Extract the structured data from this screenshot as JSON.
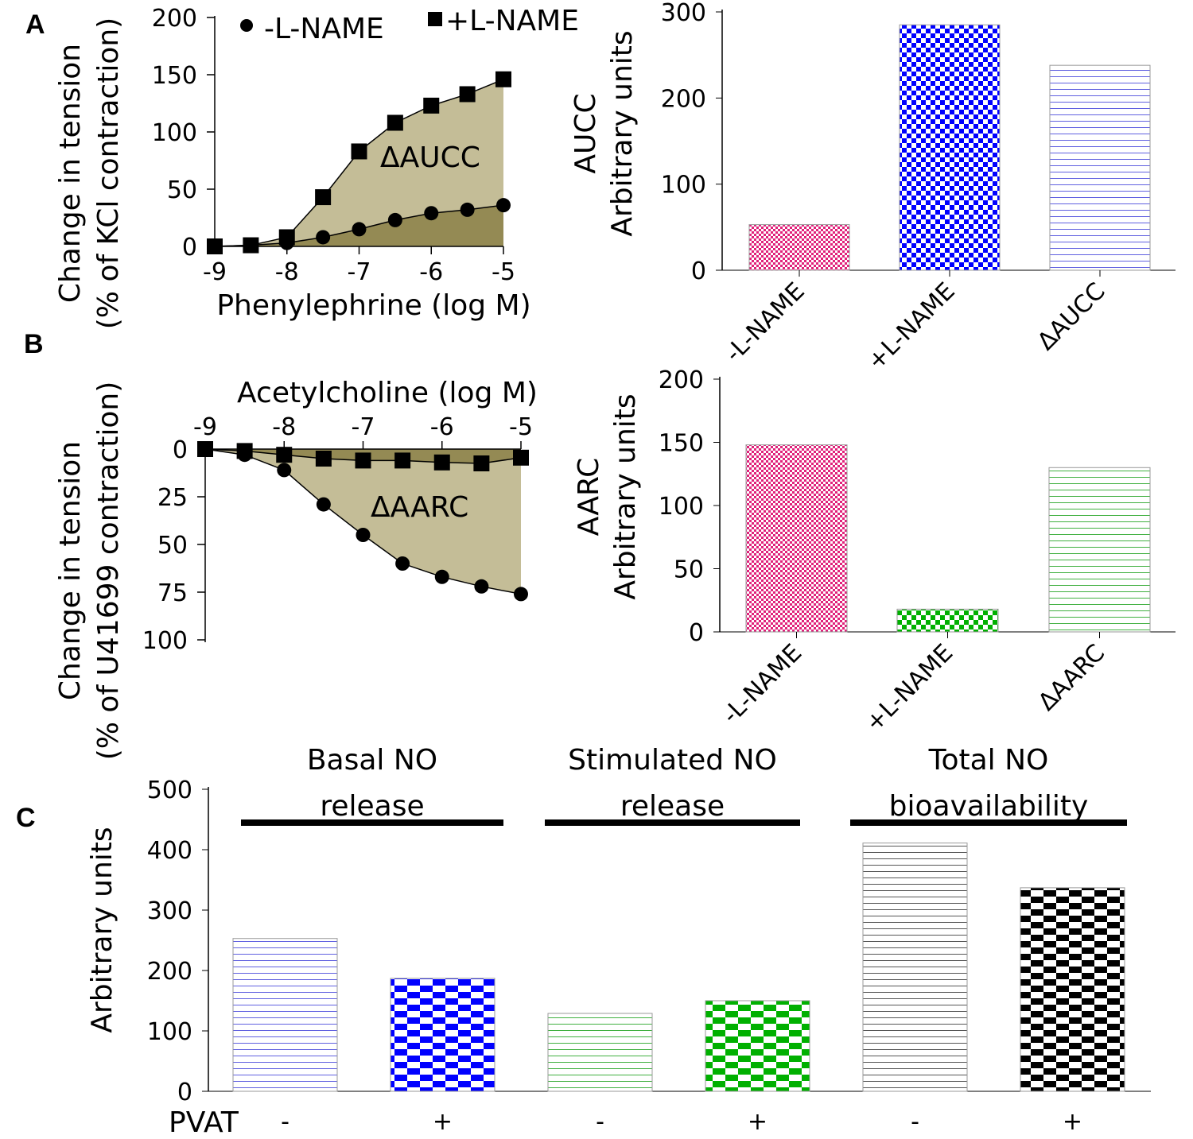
{
  "panel_labels": [
    "A",
    "B",
    "C"
  ],
  "chart_data": [
    {
      "id": "A_line",
      "type": "line",
      "xlabel": "Phenylephrine (log M)",
      "ylabel": [
        "Change in tension",
        "(% of KCl contraction)"
      ],
      "x": [
        -9,
        -8.5,
        -8,
        -7.5,
        -7,
        -6.5,
        -6,
        -5.5,
        -5
      ],
      "xticks": [
        "-9",
        "-8",
        "-7",
        "-6",
        "-5"
      ],
      "yticks": [
        "0",
        "50",
        "100",
        "150",
        "200"
      ],
      "xlim": [
        -9,
        -5
      ],
      "ylim": [
        0,
        200
      ],
      "series": [
        {
          "name": "-L-NAME",
          "marker": "circle",
          "values": [
            0,
            1,
            3,
            8,
            15,
            23,
            29,
            32,
            36
          ]
        },
        {
          "name": "+L-NAME",
          "marker": "square",
          "values": [
            0,
            1,
            8,
            43,
            83,
            108,
            123,
            133,
            146
          ]
        }
      ],
      "annotation": "ΔAUCC",
      "fill_colors": {
        "between": "#c4bd97",
        "under": "#948a54"
      },
      "legend": "top"
    },
    {
      "id": "A_bar",
      "type": "bar",
      "ylabel": [
        "AUCC",
        "Arbitrary units"
      ],
      "categories": [
        "-L-NAME",
        "+L-NAME",
        "ΔAUCC"
      ],
      "values": [
        53,
        285,
        238
      ],
      "yticks": [
        "0",
        "100",
        "200",
        "300"
      ],
      "ylim": [
        0,
        300
      ],
      "patterns": [
        "pink-checker",
        "blue-checker",
        "blue-lines"
      ]
    },
    {
      "id": "B_line",
      "type": "line",
      "xlabel": "Acetylcholine (log M)",
      "ylabel": [
        "Change in tension",
        "(% of U41699 contraction)"
      ],
      "x": [
        -9,
        -8.5,
        -8,
        -7.5,
        -7,
        -6.5,
        -6,
        -5.5,
        -5
      ],
      "xticks": [
        "-9",
        "-8",
        "-7",
        "-6",
        "-5"
      ],
      "yticks": [
        "0",
        "25",
        "50",
        "75",
        "100"
      ],
      "xlim": [
        -9,
        -5
      ],
      "ylim": [
        0,
        100
      ],
      "y_inverted": true,
      "series": [
        {
          "name": "-L-NAME",
          "marker": "circle",
          "values": [
            0,
            3,
            11,
            29,
            45,
            60,
            67,
            72,
            76
          ]
        },
        {
          "name": "+L-NAME",
          "marker": "square",
          "values": [
            0,
            1,
            3,
            5,
            6,
            6,
            7,
            7.5,
            4.5
          ]
        }
      ],
      "annotation": "ΔAARC",
      "fill_colors": {
        "between": "#c4bd97",
        "under": "#948a54"
      }
    },
    {
      "id": "B_bar",
      "type": "bar",
      "ylabel": [
        "AARC",
        "Arbitrary units"
      ],
      "categories": [
        "-L-NAME",
        "+L-NAME",
        "ΔAARC"
      ],
      "values": [
        148,
        18,
        130
      ],
      "yticks": [
        "0",
        "50",
        "100",
        "150",
        "200"
      ],
      "ylim": [
        0,
        200
      ],
      "patterns": [
        "pink-checker",
        "green-checker",
        "green-lines"
      ]
    },
    {
      "id": "C_bar",
      "type": "bar",
      "ylabel": "Arbitrary units",
      "xlabel": "PVAT",
      "categories": [
        "-",
        "+",
        "-",
        "+",
        "-",
        "+"
      ],
      "groups": [
        {
          "label": [
            "Basal NO",
            "release"
          ]
        },
        {
          "label": [
            "Stimulated NO",
            "release"
          ]
        },
        {
          "label": [
            "Total NO",
            "bioavailability"
          ]
        }
      ],
      "values": [
        253,
        187,
        129,
        150,
        411,
        337
      ],
      "yticks": [
        "0",
        "100",
        "200",
        "300",
        "400",
        "500"
      ],
      "ylim": [
        0,
        500
      ],
      "patterns": [
        "blue-lines",
        "blue-brick",
        "green-lines",
        "green-brick",
        "black-lines",
        "black-brick"
      ]
    }
  ],
  "colors": {
    "pink": "#e0217a",
    "blue": "#0000ff",
    "green": "#00b000",
    "black": "#000000"
  }
}
